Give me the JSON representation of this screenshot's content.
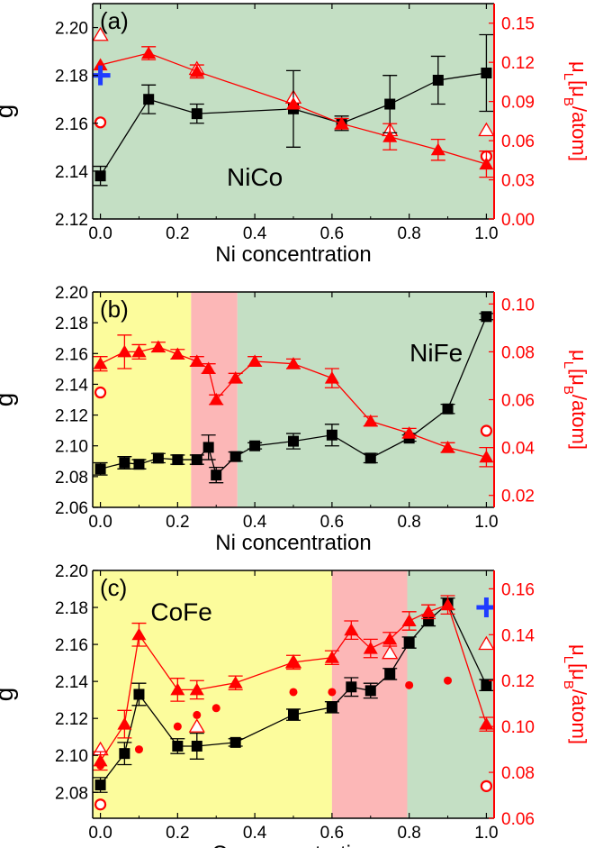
{
  "chart_data": [
    {
      "type": "line",
      "panel_label": "(a)",
      "annotation": "NiCo",
      "xlabel": "Ni concentration",
      "ylabel": "g",
      "y2label_mu": "μ",
      "y2label_sub": "L",
      "y2label_open": "[μ",
      "y2label_sub2": "B",
      "y2label_close": "/atom]",
      "xlim": [
        -0.02,
        1.02
      ],
      "ylim": [
        2.12,
        2.21
      ],
      "y2lim": [
        0.0,
        0.165
      ],
      "xticks": [
        "0.0",
        "0.2",
        "0.4",
        "0.6",
        "0.8",
        "1.0"
      ],
      "yticks": [
        "2.12",
        "2.14",
        "2.16",
        "2.18",
        "2.20"
      ],
      "y2ticks": [
        "0.00",
        "0.03",
        "0.06",
        "0.09",
        "0.12",
        "0.15"
      ],
      "colors": {
        "g": "#000000",
        "mu": "#ff0000",
        "blue": "#1f3cff"
      },
      "regions": [
        {
          "from": -0.02,
          "to": 1.02,
          "color": "#c4dfc4"
        }
      ],
      "g_series": [
        {
          "x": 0.0,
          "y": 2.138,
          "err": 0.004
        },
        {
          "x": 0.125,
          "y": 2.17,
          "err": 0.006
        },
        {
          "x": 0.25,
          "y": 2.164,
          "err": 0.004
        },
        {
          "x": 0.5,
          "y": 2.166,
          "err": 0.016
        },
        {
          "x": 0.625,
          "y": 2.16,
          "err": 0.003
        },
        {
          "x": 0.75,
          "y": 2.168,
          "err": 0.012
        },
        {
          "x": 0.875,
          "y": 2.178,
          "err": 0.01
        },
        {
          "x": 1.0,
          "y": 2.181,
          "err": 0.016
        }
      ],
      "mu_series": [
        {
          "x": 0.0,
          "y": 0.118,
          "err": 0.0
        },
        {
          "x": 0.125,
          "y": 0.127,
          "err": 0.005
        },
        {
          "x": 0.25,
          "y": 0.113,
          "err": 0.005
        },
        {
          "x": 0.5,
          "y": 0.088,
          "err": 0.0
        },
        {
          "x": 0.625,
          "y": 0.073,
          "err": 0.004
        },
        {
          "x": 0.75,
          "y": 0.063,
          "err": 0.01
        },
        {
          "x": 0.875,
          "y": 0.053,
          "err": 0.008
        },
        {
          "x": 1.0,
          "y": 0.042,
          "err": 0.01
        }
      ],
      "open_triangles": [
        {
          "x": 0.0,
          "y": 0.141
        },
        {
          "x": 0.25,
          "y": 0.115
        },
        {
          "x": 0.5,
          "y": 0.093
        },
        {
          "x": 0.75,
          "y": 0.068
        },
        {
          "x": 1.0,
          "y": 0.068
        }
      ],
      "open_circles": [
        {
          "x": 0.0,
          "y": 0.074
        },
        {
          "x": 1.0,
          "y": 0.048
        }
      ],
      "filled_circles": [],
      "blue_crosses": [
        {
          "x": 0.0,
          "y": 2.18
        }
      ]
    },
    {
      "type": "line",
      "panel_label": "(b)",
      "annotation": "NiFe",
      "xlabel": "Ni concentration",
      "ylabel": "g",
      "y2label_mu": "μ",
      "y2label_sub": "L",
      "y2label_open": "[μ",
      "y2label_sub2": "B",
      "y2label_close": "/atom]",
      "xlim": [
        -0.02,
        1.02
      ],
      "ylim": [
        2.06,
        2.2
      ],
      "y2lim": [
        0.015,
        0.105
      ],
      "xticks": [
        "0.0",
        "0.2",
        "0.4",
        "0.6",
        "0.8",
        "1.0"
      ],
      "yticks": [
        "2.06",
        "2.08",
        "2.10",
        "2.12",
        "2.14",
        "2.16",
        "2.18",
        "2.20"
      ],
      "y2ticks": [
        "0.02",
        "0.04",
        "0.06",
        "0.08",
        "0.10"
      ],
      "colors": {
        "g": "#000000",
        "mu": "#ff0000",
        "blue": "#1f3cff"
      },
      "regions": [
        {
          "from": -0.02,
          "to": 0.235,
          "color": "#fcfc9c"
        },
        {
          "from": 0.235,
          "to": 0.355,
          "color": "#fcb7b7"
        },
        {
          "from": 0.355,
          "to": 1.02,
          "color": "#c4dfc4"
        }
      ],
      "g_series": [
        {
          "x": 0.0,
          "y": 2.085,
          "err": 0.004
        },
        {
          "x": 0.0625,
          "y": 2.089,
          "err": 0.004
        },
        {
          "x": 0.1,
          "y": 2.088,
          "err": 0.003
        },
        {
          "x": 0.15,
          "y": 2.092,
          "err": 0.003
        },
        {
          "x": 0.2,
          "y": 2.091,
          "err": 0.003
        },
        {
          "x": 0.25,
          "y": 2.091,
          "err": 0.003
        },
        {
          "x": 0.28,
          "y": 2.099,
          "err": 0.008
        },
        {
          "x": 0.3,
          "y": 2.081,
          "err": 0.005
        },
        {
          "x": 0.35,
          "y": 2.093,
          "err": 0.003
        },
        {
          "x": 0.4,
          "y": 2.1,
          "err": 0.002
        },
        {
          "x": 0.5,
          "y": 2.103,
          "err": 0.005
        },
        {
          "x": 0.6,
          "y": 2.107,
          "err": 0.007
        },
        {
          "x": 0.7,
          "y": 2.092,
          "err": 0.003
        },
        {
          "x": 0.8,
          "y": 2.105,
          "err": 0.002
        },
        {
          "x": 0.9,
          "y": 2.124,
          "err": 0.003
        },
        {
          "x": 1.0,
          "y": 2.184,
          "err": 0.002
        }
      ],
      "mu_series": [
        {
          "x": 0.0,
          "y": 0.075,
          "err": 0.003
        },
        {
          "x": 0.0625,
          "y": 0.08,
          "err": 0.007
        },
        {
          "x": 0.1,
          "y": 0.08,
          "err": 0.003
        },
        {
          "x": 0.15,
          "y": 0.082,
          "err": 0.002
        },
        {
          "x": 0.2,
          "y": 0.079,
          "err": 0.002
        },
        {
          "x": 0.25,
          "y": 0.076,
          "err": 0.002
        },
        {
          "x": 0.28,
          "y": 0.073,
          "err": 0.002
        },
        {
          "x": 0.3,
          "y": 0.06,
          "err": 0.002
        },
        {
          "x": 0.35,
          "y": 0.069,
          "err": 0.002
        },
        {
          "x": 0.4,
          "y": 0.076,
          "err": 0.002
        },
        {
          "x": 0.5,
          "y": 0.075,
          "err": 0.002
        },
        {
          "x": 0.6,
          "y": 0.069,
          "err": 0.004
        },
        {
          "x": 0.7,
          "y": 0.051,
          "err": 0.002
        },
        {
          "x": 0.8,
          "y": 0.046,
          "err": 0.002
        },
        {
          "x": 0.9,
          "y": 0.04,
          "err": 0.002
        },
        {
          "x": 1.0,
          "y": 0.036,
          "err": 0.004
        }
      ],
      "open_triangles": [],
      "open_circles": [
        {
          "x": 0.0,
          "y": 0.063
        },
        {
          "x": 1.0,
          "y": 0.047
        }
      ],
      "filled_circles": [],
      "blue_crosses": []
    },
    {
      "type": "line",
      "panel_label": "(c)",
      "annotation": "CoFe",
      "xlabel": "Co concentration",
      "ylabel": "g",
      "y2label_mu": "μ",
      "y2label_sub": "L",
      "y2label_open": "[μ",
      "y2label_sub2": "B",
      "y2label_close": "/atom]",
      "xlim": [
        -0.02,
        1.02
      ],
      "ylim": [
        2.066,
        2.2
      ],
      "y2lim": [
        0.06,
        0.168
      ],
      "xticks": [
        "0.0",
        "0.2",
        "0.4",
        "0.6",
        "0.8",
        "1.0"
      ],
      "yticks": [
        "2.08",
        "2.10",
        "2.12",
        "2.14",
        "2.16",
        "2.18",
        "2.20"
      ],
      "y2ticks": [
        "0.06",
        "0.08",
        "0.10",
        "0.12",
        "0.14",
        "0.16"
      ],
      "colors": {
        "g": "#000000",
        "mu": "#ff0000",
        "blue": "#1f3cff"
      },
      "regions": [
        {
          "from": -0.02,
          "to": 0.6,
          "color": "#fcfc9c"
        },
        {
          "from": 0.6,
          "to": 0.795,
          "color": "#fcb7b7"
        },
        {
          "from": 0.795,
          "to": 1.02,
          "color": "#c4dfc4"
        }
      ],
      "g_series": [
        {
          "x": 0.0,
          "y": 2.084,
          "err": 0.004
        },
        {
          "x": 0.0625,
          "y": 2.101,
          "err": 0.006
        },
        {
          "x": 0.1,
          "y": 2.133,
          "err": 0.006
        },
        {
          "x": 0.2,
          "y": 2.105,
          "err": 0.004
        },
        {
          "x": 0.25,
          "y": 2.105,
          "err": 0.007
        },
        {
          "x": 0.35,
          "y": 2.107,
          "err": 0.002
        },
        {
          "x": 0.5,
          "y": 2.122,
          "err": 0.003
        },
        {
          "x": 0.6,
          "y": 2.126,
          "err": 0.003
        },
        {
          "x": 0.65,
          "y": 2.137,
          "err": 0.005
        },
        {
          "x": 0.7,
          "y": 2.135,
          "err": 0.004
        },
        {
          "x": 0.75,
          "y": 2.144,
          "err": 0.003
        },
        {
          "x": 0.8,
          "y": 2.161,
          "err": 0.003
        },
        {
          "x": 0.85,
          "y": 2.173,
          "err": 0.003
        },
        {
          "x": 0.9,
          "y": 2.182,
          "err": 0.003
        },
        {
          "x": 1.0,
          "y": 2.138,
          "err": 0.003
        }
      ],
      "mu_series": [
        {
          "x": 0.0,
          "y": 0.085,
          "err": 0.004
        },
        {
          "x": 0.0625,
          "y": 0.101,
          "err": 0.006
        },
        {
          "x": 0.1,
          "y": 0.14,
          "err": 0.005
        },
        {
          "x": 0.2,
          "y": 0.116,
          "err": 0.005
        },
        {
          "x": 0.25,
          "y": 0.116,
          "err": 0.004
        },
        {
          "x": 0.35,
          "y": 0.119,
          "err": 0.003
        },
        {
          "x": 0.5,
          "y": 0.128,
          "err": 0.003
        },
        {
          "x": 0.6,
          "y": 0.13,
          "err": 0.003
        },
        {
          "x": 0.65,
          "y": 0.142,
          "err": 0.004
        },
        {
          "x": 0.7,
          "y": 0.134,
          "err": 0.004
        },
        {
          "x": 0.75,
          "y": 0.138,
          "err": 0.003
        },
        {
          "x": 0.8,
          "y": 0.146,
          "err": 0.004
        },
        {
          "x": 0.85,
          "y": 0.15,
          "err": 0.003
        },
        {
          "x": 0.9,
          "y": 0.153,
          "err": 0.004
        },
        {
          "x": 1.0,
          "y": 0.101,
          "err": 0.003
        }
      ],
      "open_triangles": [
        {
          "x": 0.0,
          "y": 0.09
        },
        {
          "x": 0.25,
          "y": 0.1
        },
        {
          "x": 0.5,
          "y": 0.128
        },
        {
          "x": 0.75,
          "y": 0.132
        },
        {
          "x": 1.0,
          "y": 0.136
        }
      ],
      "open_circles": [
        {
          "x": 0.0,
          "y": 0.066
        },
        {
          "x": 1.0,
          "y": 0.074
        }
      ],
      "filled_circles": [
        {
          "x": 0.0,
          "y": 0.083
        },
        {
          "x": 0.1,
          "y": 0.09
        },
        {
          "x": 0.2,
          "y": 0.1
        },
        {
          "x": 0.25,
          "y": 0.105
        },
        {
          "x": 0.3,
          "y": 0.108
        },
        {
          "x": 0.5,
          "y": 0.115
        },
        {
          "x": 0.6,
          "y": 0.115
        },
        {
          "x": 0.7,
          "y": 0.116
        },
        {
          "x": 0.8,
          "y": 0.118
        },
        {
          "x": 0.9,
          "y": 0.12
        }
      ],
      "blue_crosses": [
        {
          "x": 1.0,
          "y": 2.18
        }
      ]
    }
  ]
}
